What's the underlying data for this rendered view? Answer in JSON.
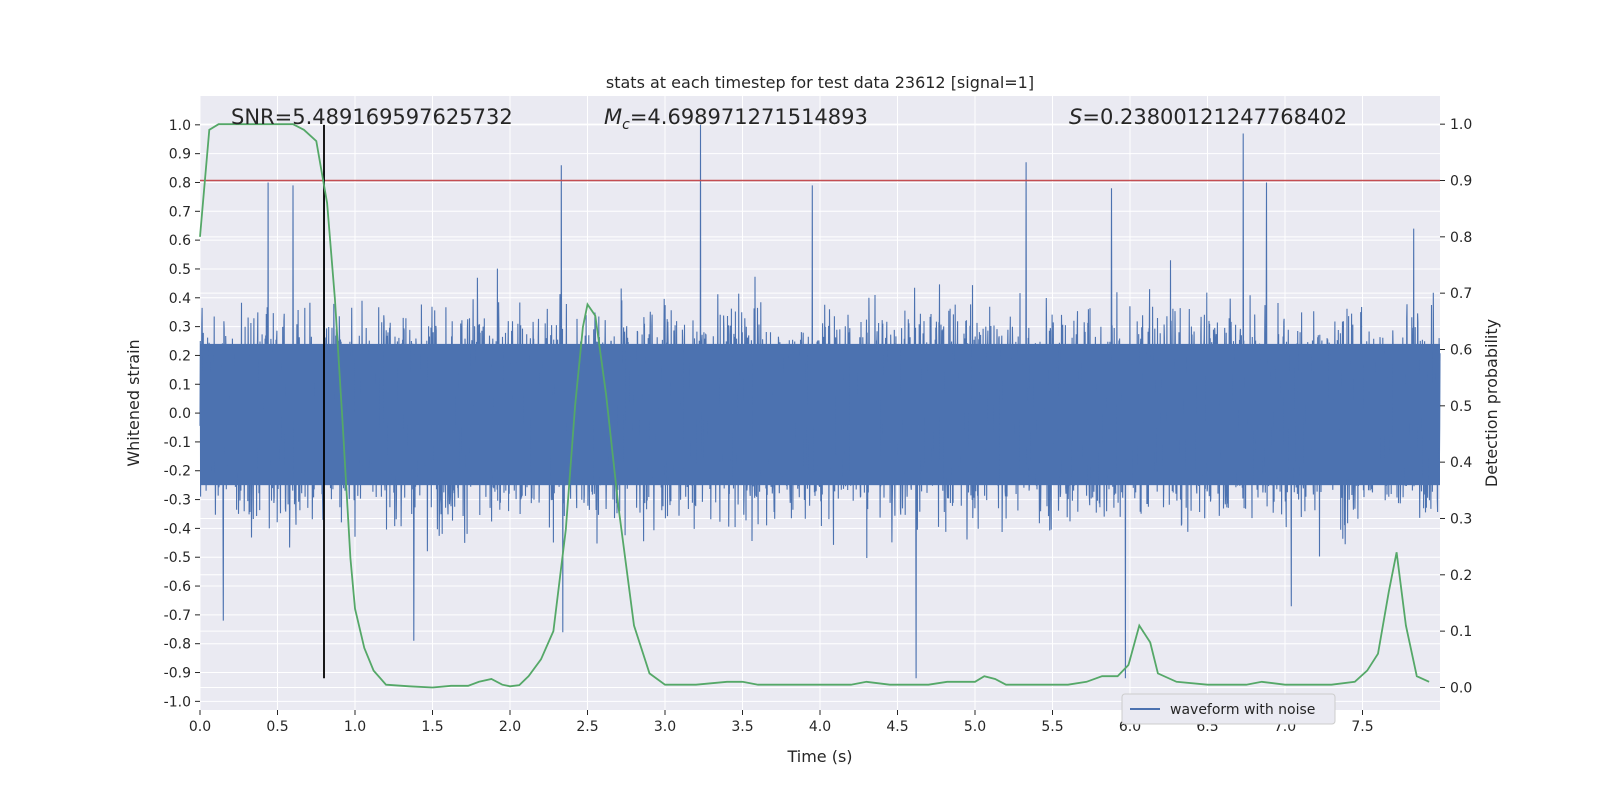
{
  "chart_data": {
    "type": "line",
    "title": "stats at each timestep for test data 23612 [signal=1]",
    "xlabel": "Time (s)",
    "ylabel": "Whitened strain",
    "y2label": "Detection probability",
    "xlim": [
      0.0,
      8.0
    ],
    "ylim": [
      -1.03,
      1.1
    ],
    "y2lim": [
      -0.04,
      1.05
    ],
    "xticks": [
      "0.0",
      "0.5",
      "1.0",
      "1.5",
      "2.0",
      "2.5",
      "3.0",
      "3.5",
      "4.0",
      "4.5",
      "5.0",
      "5.5",
      "6.0",
      "6.5",
      "7.0",
      "7.5"
    ],
    "yticks": [
      "-1.0",
      "-0.9",
      "-0.8",
      "-0.7",
      "-0.6",
      "-0.5",
      "-0.4",
      "-0.3",
      "-0.2",
      "-0.1",
      "0.0",
      "0.1",
      "0.2",
      "0.3",
      "0.4",
      "0.5",
      "0.6",
      "0.7",
      "0.8",
      "0.9",
      "1.0"
    ],
    "y2ticks": [
      "0.0",
      "0.1",
      "0.2",
      "0.3",
      "0.4",
      "0.5",
      "0.6",
      "0.7",
      "0.8",
      "0.9",
      "1.0"
    ],
    "grid": true,
    "legend_position": "lower-right",
    "annotations": {
      "snr": "SNR=5.489169597625732",
      "mc_symbol": "M",
      "mc_sub": "c",
      "mc_value": "=4.698971271514893",
      "s_symbol": "S",
      "s_value": "=0.23800121247768402"
    },
    "series": [
      {
        "name": "waveform with noise",
        "axis": "left",
        "color": "#4c72b0",
        "kind": "noise",
        "noise_band": [
          -0.25,
          0.24
        ],
        "notable_peaks": [
          {
            "x": 0.44,
            "y": 0.8
          },
          {
            "x": 0.6,
            "y": 0.79
          },
          {
            "x": 0.8,
            "y": 0.84
          },
          {
            "x": 2.33,
            "y": 0.86
          },
          {
            "x": 3.23,
            "y": 1.0
          },
          {
            "x": 3.95,
            "y": 0.79
          },
          {
            "x": 5.33,
            "y": 0.87
          },
          {
            "x": 5.88,
            "y": 0.78
          },
          {
            "x": 6.73,
            "y": 0.97
          },
          {
            "x": 6.88,
            "y": 0.8
          },
          {
            "x": 7.83,
            "y": 0.64
          }
        ],
        "notable_troughs": [
          {
            "x": 0.15,
            "y": -0.72
          },
          {
            "x": 1.38,
            "y": -0.79
          },
          {
            "x": 2.34,
            "y": -0.76
          },
          {
            "x": 4.62,
            "y": -0.92
          },
          {
            "x": 5.97,
            "y": -0.92
          },
          {
            "x": 7.04,
            "y": -0.67
          }
        ]
      },
      {
        "name": "detection probability",
        "axis": "right",
        "color": "#55a868",
        "x": [
          0.0,
          0.06,
          0.12,
          0.2,
          0.3,
          0.4,
          0.5,
          0.6,
          0.67,
          0.75,
          0.82,
          0.87,
          0.92,
          0.97,
          1.0,
          1.06,
          1.12,
          1.2,
          1.35,
          1.5,
          1.62,
          1.73,
          1.8,
          1.88,
          1.95,
          2.0,
          2.06,
          2.12,
          2.2,
          2.28,
          2.36,
          2.42,
          2.47,
          2.5,
          2.55,
          2.62,
          2.7,
          2.8,
          2.9,
          3.0,
          3.2,
          3.4,
          3.5,
          3.6,
          3.8,
          4.0,
          4.2,
          4.3,
          4.45,
          4.6,
          4.7,
          4.82,
          5.0,
          5.06,
          5.13,
          5.2,
          5.4,
          5.6,
          5.72,
          5.82,
          5.92,
          5.99,
          6.06,
          6.13,
          6.18,
          6.3,
          6.5,
          6.75,
          6.85,
          7.0,
          7.3,
          7.45,
          7.53,
          7.6,
          7.67,
          7.72,
          7.78,
          7.85,
          7.93
        ],
        "y": [
          0.8,
          0.99,
          1.0,
          1.0,
          1.0,
          1.0,
          1.0,
          1.0,
          0.99,
          0.97,
          0.86,
          0.69,
          0.47,
          0.23,
          0.14,
          0.07,
          0.03,
          0.005,
          0.002,
          0.0,
          0.003,
          0.003,
          0.01,
          0.015,
          0.005,
          0.002,
          0.004,
          0.02,
          0.05,
          0.1,
          0.28,
          0.5,
          0.64,
          0.68,
          0.66,
          0.52,
          0.32,
          0.11,
          0.025,
          0.005,
          0.005,
          0.01,
          0.01,
          0.005,
          0.005,
          0.005,
          0.005,
          0.01,
          0.005,
          0.005,
          0.005,
          0.01,
          0.01,
          0.02,
          0.015,
          0.005,
          0.005,
          0.005,
          0.01,
          0.02,
          0.02,
          0.04,
          0.11,
          0.08,
          0.025,
          0.01,
          0.005,
          0.005,
          0.01,
          0.005,
          0.005,
          0.01,
          0.03,
          0.06,
          0.17,
          0.24,
          0.11,
          0.02,
          0.01
        ]
      }
    ],
    "hlines": [
      {
        "axis": "right",
        "y": 0.9,
        "color": "#c44e52"
      }
    ],
    "vlines": [
      {
        "x": 0.8,
        "ymin": -0.92,
        "ymax": 1.0,
        "color": "#000000"
      }
    ]
  }
}
